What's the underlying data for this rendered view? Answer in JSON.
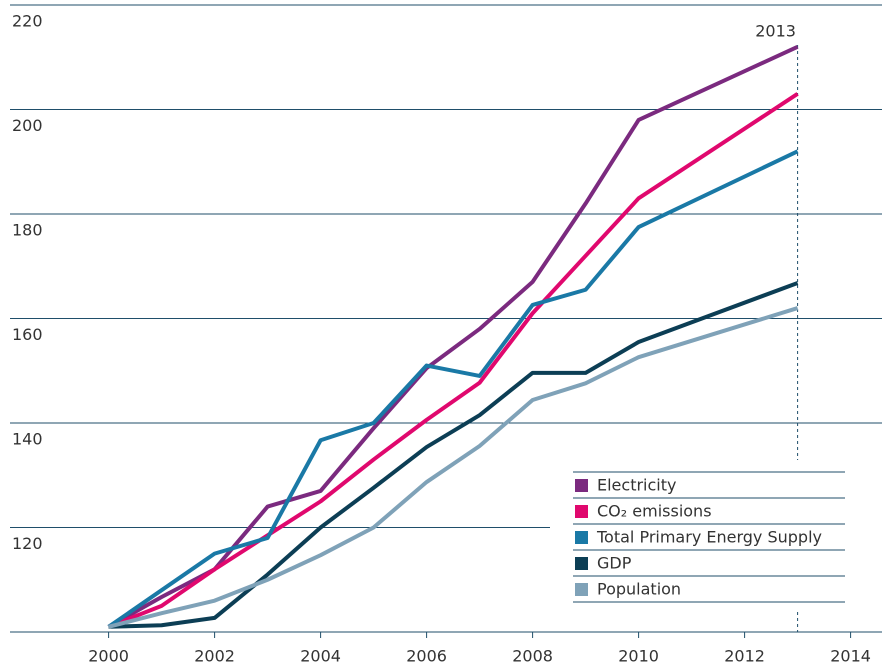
{
  "chart_data": {
    "type": "line",
    "x": [
      2000,
      2001,
      2002,
      2003,
      2004,
      2005,
      2006,
      2007,
      2008,
      2009,
      2010,
      2013
    ],
    "series": [
      {
        "name": "Electricity",
        "color": "#7b2a7f",
        "values": [
          101,
          106.7,
          112,
          124,
          127,
          139,
          150.5,
          158,
          167,
          182,
          198,
          212
        ]
      },
      {
        "name": "CO₂ emissions",
        "color": "#e0086e",
        "values": [
          101,
          105,
          112,
          118.5,
          125,
          133,
          140.6,
          147.7,
          161,
          172,
          183,
          203
        ]
      },
      {
        "name": "Total Primary Energy Supply",
        "color": "#1a79a6",
        "values": [
          101,
          108,
          115,
          118,
          136.7,
          140,
          151,
          149,
          162.6,
          165.5,
          177.5,
          192
        ]
      },
      {
        "name": "GDP",
        "color": "#0c3e55",
        "values": [
          101,
          101.3,
          102.7,
          111,
          120,
          127.6,
          135.4,
          141.5,
          149.6,
          149.6,
          155.5,
          166.8
        ]
      },
      {
        "name": "Population",
        "color": "#7fa2b8",
        "values": [
          101,
          103.6,
          106,
          110,
          114.7,
          120,
          128.7,
          135.6,
          144.4,
          147.6,
          152.6,
          162
        ]
      }
    ],
    "annotation": {
      "x": 2013,
      "label": "2013"
    },
    "xlim": [
      1999.8,
      2014.8
    ],
    "xticks": [
      2000,
      2002,
      2004,
      2006,
      2008,
      2010,
      2012,
      2014
    ],
    "ylim": [
      100,
      220
    ],
    "yticks": [
      120,
      140,
      160,
      180,
      200,
      220
    ],
    "grid": true
  }
}
